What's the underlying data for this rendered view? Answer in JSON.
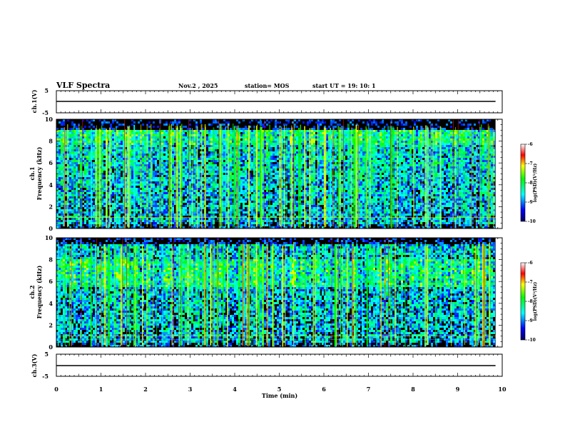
{
  "header": {
    "title": "VLF Spectra",
    "date": "Nov.2  , 2025",
    "station": "station= MOS",
    "start": "start  UT  =   19: 10: 1"
  },
  "colors": {
    "background": "#ffffff",
    "frame": "#000000",
    "spectrogram_floor": "#000000"
  },
  "chart_data": [
    {
      "type": "line",
      "id": "ch1-waveform",
      "ylabel": "ch.1(V)",
      "ylim": [
        -5,
        5
      ],
      "yticks": [
        "5",
        "-5"
      ],
      "xlim": [
        0,
        10
      ],
      "x": [
        0,
        9.85
      ],
      "values": [
        0,
        0
      ]
    },
    {
      "type": "heatmap",
      "id": "ch1-spectrogram",
      "ylabel_line1": "ch.1",
      "ylabel_line2": "Frequency (kHz)",
      "ylim": [
        0,
        10
      ],
      "yticks": [
        "0",
        "2",
        "4",
        "6",
        "8",
        "10"
      ],
      "xlim": [
        0,
        10
      ],
      "data_end_min": 9.85,
      "colorbar": {
        "label": "log(PSD)(V²/Hz)",
        "range": [
          -10,
          -6
        ],
        "ticks": [
          "-6",
          "-7",
          "-8",
          "-9",
          "-10"
        ]
      }
    },
    {
      "type": "heatmap",
      "id": "ch2-spectrogram",
      "ylabel_line1": "ch.2",
      "ylabel_line2": "Frequency (kHz)",
      "ylim": [
        0,
        10
      ],
      "yticks": [
        "0",
        "2",
        "4",
        "6",
        "8",
        "10"
      ],
      "xlim": [
        0,
        10
      ],
      "data_end_min": 9.85,
      "colorbar": {
        "label": "log(PSD)(V²/Hz)",
        "range": [
          -10,
          -6
        ],
        "ticks": [
          "-6",
          "-7",
          "-8",
          "-9",
          "-10"
        ]
      }
    },
    {
      "type": "line",
      "id": "ch3-waveform",
      "ylabel": "ch.3(V)",
      "ylim": [
        -5,
        5
      ],
      "yticks": [
        "5",
        "-5"
      ],
      "xlim": [
        0,
        10
      ],
      "x": [
        0,
        9.85
      ],
      "values": [
        0,
        0
      ]
    }
  ],
  "xaxis": {
    "label": "Time (min)",
    "ticks": [
      "0",
      "1",
      "2",
      "3",
      "4",
      "5",
      "6",
      "7",
      "8",
      "9",
      "10"
    ]
  }
}
